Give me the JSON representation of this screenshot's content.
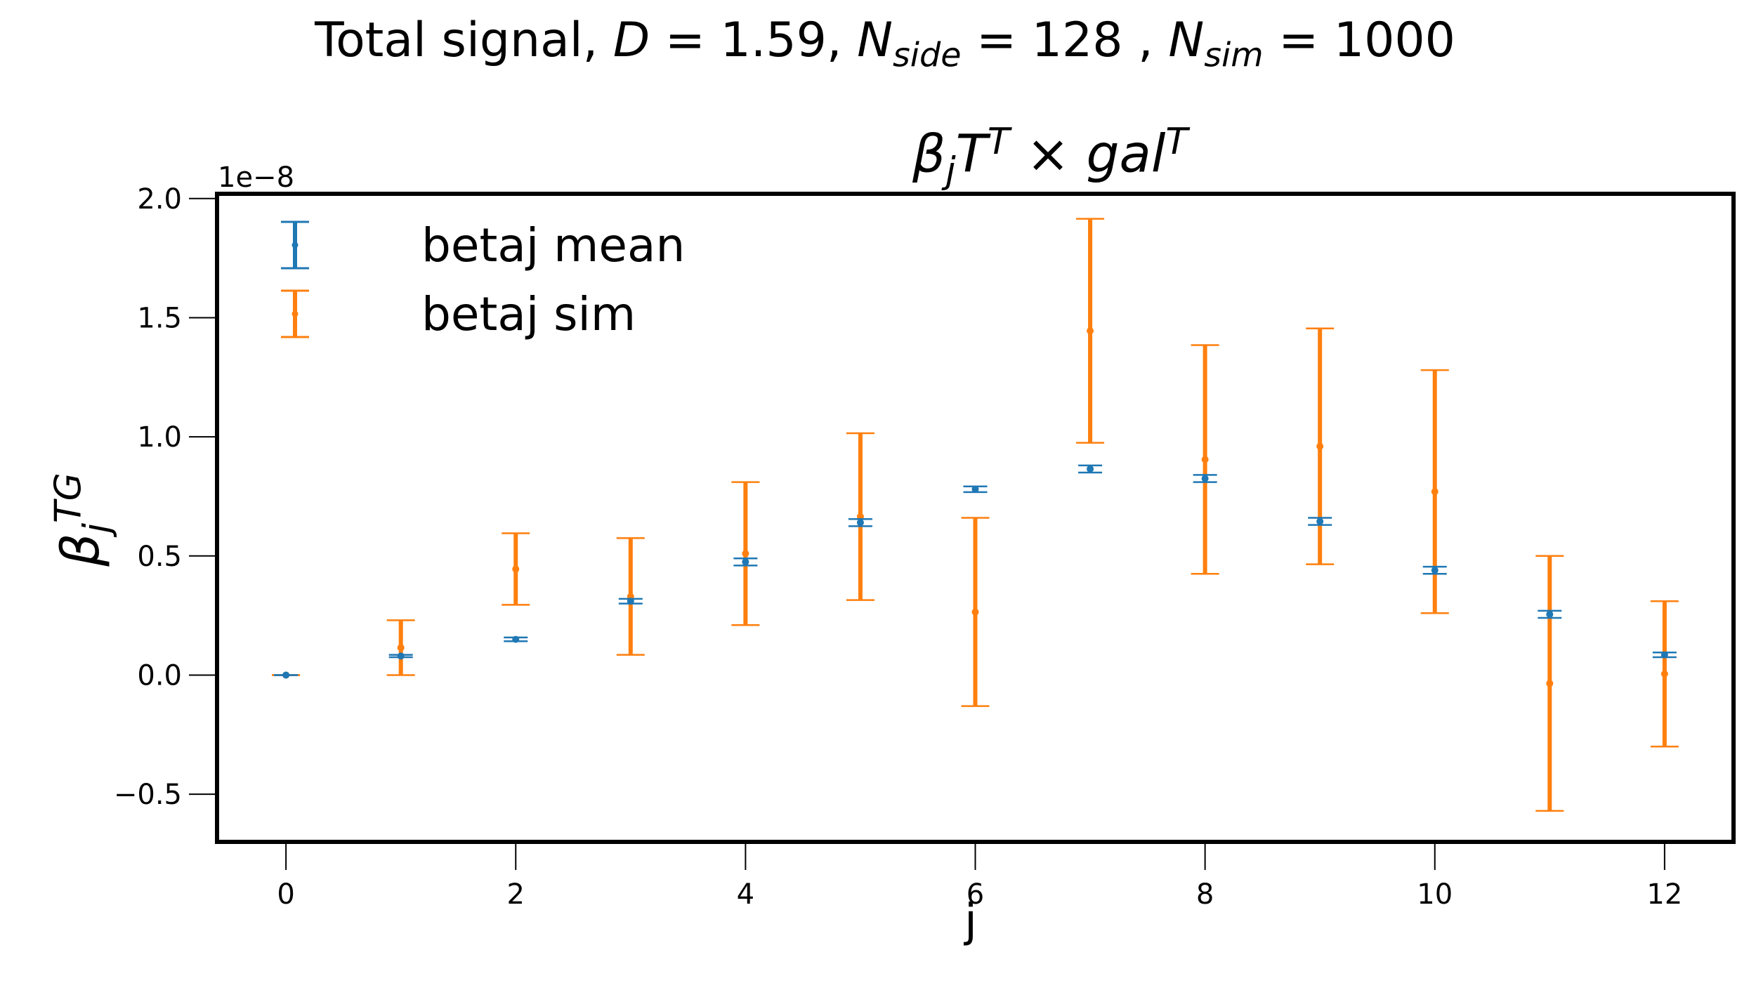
{
  "chart_data": {
    "type": "errorbar",
    "suptitle": "Total signal, D = 1.59,  N_side = 128 ,  N_sim = 1000",
    "suptitle_parts": {
      "lead": "Total signal, ",
      "d_sym": "D",
      "d_val": " = 1.59,  ",
      "n": "N",
      "side": "side",
      "nside_val": " = 128 ,  ",
      "sim": "sim",
      "nsim_val": " = 1000"
    },
    "title": "β_j T^T × gal^T",
    "title_parts": {
      "beta": "β",
      "j": "j",
      "T": "T",
      "sup": "T",
      "times": " × gal",
      "gsup": "T"
    },
    "xlabel": "j",
    "ylabel": "β_j^TG",
    "ylabel_parts": {
      "beta": "β",
      "sub": "j",
      "sup": "TG"
    },
    "y_offset_text": "1e−8",
    "xlim": [
      -0.6,
      12.6
    ],
    "ylim": [
      -0.7,
      2.02
    ],
    "x_ticks": [
      0,
      2,
      4,
      6,
      8,
      10,
      12
    ],
    "x_tick_labels": [
      "0",
      "2",
      "4",
      "6",
      "8",
      "10",
      "12"
    ],
    "y_ticks": [
      -0.5,
      0.0,
      0.5,
      1.0,
      1.5,
      2.0
    ],
    "y_tick_labels": [
      "−0.5",
      "0.0",
      "0.5",
      "1.0",
      "1.5",
      "2.0"
    ],
    "legend_position": "upper-left",
    "series": [
      {
        "name": "betaj mean",
        "color": "#1f77b4",
        "x": [
          0,
          1,
          2,
          3,
          4,
          5,
          6,
          7,
          8,
          9,
          10,
          11,
          12
        ],
        "y": [
          0.0,
          0.08,
          0.15,
          0.31,
          0.475,
          0.64,
          0.78,
          0.865,
          0.825,
          0.645,
          0.44,
          0.255,
          0.085
        ],
        "err": [
          0.0,
          0.005,
          0.008,
          0.01,
          0.015,
          0.015,
          0.012,
          0.015,
          0.015,
          0.015,
          0.015,
          0.015,
          0.01
        ]
      },
      {
        "name": "betaj sim",
        "color": "#ff7f0e",
        "x": [
          0,
          1,
          2,
          3,
          4,
          5,
          6,
          7,
          8,
          9,
          10,
          11,
          12
        ],
        "y": [
          0.0,
          0.115,
          0.445,
          0.33,
          0.51,
          0.665,
          0.265,
          1.445,
          0.905,
          0.96,
          0.77,
          -0.035,
          0.005
        ],
        "err": [
          0.0,
          0.115,
          0.15,
          0.245,
          0.3,
          0.35,
          0.395,
          0.47,
          0.48,
          0.495,
          0.51,
          0.535,
          0.305
        ]
      }
    ]
  }
}
